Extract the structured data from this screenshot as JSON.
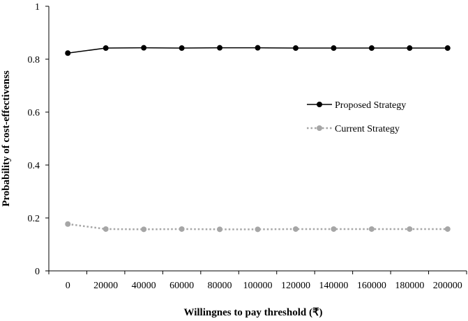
{
  "chart_data": {
    "type": "line",
    "title": "",
    "xlabel": "Willingnes to pay threshold (₹)",
    "ylabel": "Probability of cost-effectivenss",
    "x": [
      0,
      20000,
      40000,
      60000,
      80000,
      100000,
      120000,
      140000,
      160000,
      180000,
      200000
    ],
    "x_tick_labels": [
      "0",
      "20000",
      "40000",
      "60000",
      "80000",
      "100000",
      "120000",
      "140000",
      "160000",
      "180000",
      "200000"
    ],
    "ylim": [
      0,
      1
    ],
    "y_ticks": [
      0,
      0.2,
      0.4,
      0.6,
      0.8,
      1
    ],
    "y_tick_labels": [
      "0",
      "0.2",
      "0.4",
      "0.6",
      "0.8",
      "1"
    ],
    "grid": false,
    "legend_position": "right",
    "series": [
      {
        "name": "Proposed Strategy",
        "color": "#000000",
        "line_style": "solid",
        "values": [
          0.823,
          0.842,
          0.843,
          0.842,
          0.843,
          0.843,
          0.842,
          0.842,
          0.842,
          0.842,
          0.842
        ]
      },
      {
        "name": "Current Strategy",
        "color": "#a6a6a6",
        "line_style": "dotted",
        "values": [
          0.177,
          0.158,
          0.157,
          0.158,
          0.157,
          0.157,
          0.158,
          0.158,
          0.158,
          0.158,
          0.158
        ]
      }
    ]
  }
}
